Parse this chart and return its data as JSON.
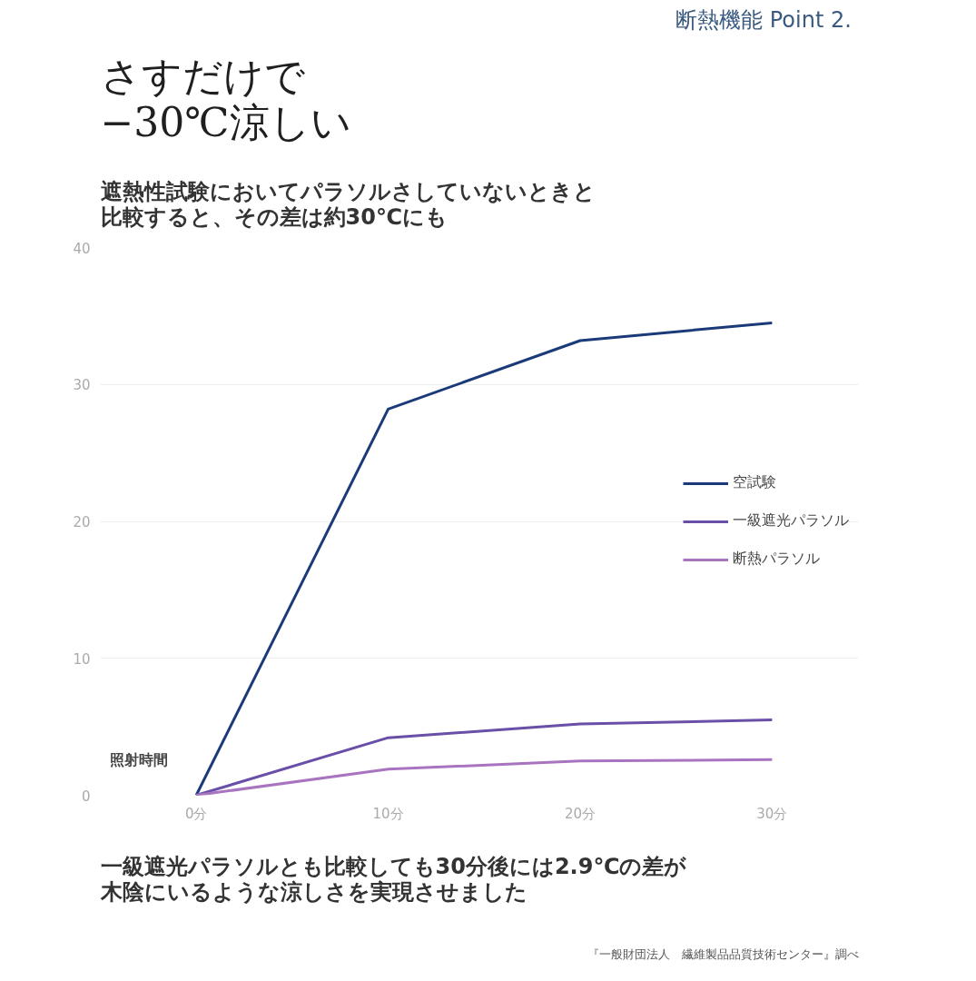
{
  "chart_data": {
    "type": "line",
    "title": "さすだけで\n−30℃涼しい",
    "subtitle": "断熱機能  Point 2.",
    "xlabel": "照射時間",
    "annotations": [
      "遮熱性試験においてパラソルさしていないときと比較すると、その差は約30℃にも",
      "一級遮光パラソルとも比較しても30分後には2.9℃の差が木陰にいるような涼しさを実現させました",
      "『一般財団法人　繊維製品品質技術センター』調べ"
    ],
    "x": [
      0,
      10,
      20,
      30
    ],
    "series": [
      {
        "name": "空試験",
        "color": "#1b3a7a",
        "values": [
          0,
          28.2,
          33.2,
          34.5
        ]
      },
      {
        "name": "一級遮光パラソル",
        "color": "#6a4fa8",
        "values": [
          0,
          4.2,
          5.2,
          5.5
        ]
      },
      {
        "name": "断熱パラソル",
        "color": "#a874c0",
        "values": [
          0,
          1.9,
          2.5,
          2.6
        ]
      }
    ],
    "xlim": [
      -5,
      34.5
    ],
    "ylim": [
      0,
      40
    ],
    "xticks": [
      {
        "value": 0,
        "label": "0分"
      },
      {
        "value": 10,
        "label": "10分"
      },
      {
        "value": 20,
        "label": "20分"
      },
      {
        "value": 30,
        "label": "30分"
      }
    ],
    "yticks": [
      0,
      10,
      20,
      30,
      40
    ],
    "grid": "y",
    "legend": "right",
    "marker": "none",
    "line_style": "solid"
  }
}
